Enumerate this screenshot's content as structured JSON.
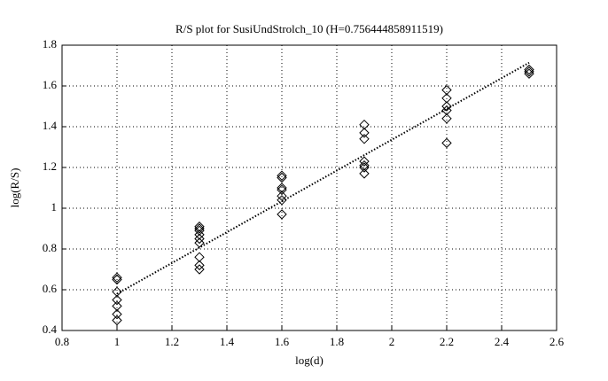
{
  "chart_data": {
    "type": "scatter",
    "title": "R/S plot for SusiUndStrolch_10 (H=0.756444858911519)",
    "x_label": "log(d)",
    "y_label": "log(R/S)",
    "xlim": [
      0.8,
      2.6
    ],
    "xticks": [
      0.8,
      1,
      1.2,
      1.4,
      1.6,
      1.8,
      2,
      2.2,
      2.4,
      2.6
    ],
    "ylim": [
      0.4,
      1.8
    ],
    "yticks": [
      0.4,
      0.6,
      0.8,
      1,
      1.2,
      1.4,
      1.6,
      1.8
    ],
    "grid": true,
    "color": "#000000",
    "x": [
      1,
      1,
      1,
      1,
      1,
      1,
      1,
      1.3,
      1.3,
      1.3,
      1.3,
      1.3,
      1.3,
      1.3,
      1.3,
      1.3,
      1.6,
      1.6,
      1.6,
      1.6,
      1.6,
      1.6,
      1.6,
      1.9,
      1.9,
      1.9,
      1.9,
      1.9,
      1.9,
      1.9,
      2.2,
      2.2,
      2.2,
      2.2,
      2.2,
      2.2,
      2.5,
      2.5,
      2.5
    ],
    "values": [
      0.66,
      0.65,
      0.59,
      0.55,
      0.52,
      0.48,
      0.45,
      0.91,
      0.9,
      0.89,
      0.87,
      0.85,
      0.83,
      0.76,
      0.72,
      0.7,
      1.16,
      1.15,
      1.1,
      1.09,
      1.06,
      1.04,
      0.97,
      1.41,
      1.37,
      1.34,
      1.23,
      1.21,
      1.2,
      1.17,
      1.58,
      1.54,
      1.5,
      1.48,
      1.44,
      1.32,
      1.68,
      1.67,
      1.66
    ],
    "fit": {
      "x": [
        1,
        2.5
      ],
      "values": [
        0.58,
        1.714
      ]
    }
  }
}
